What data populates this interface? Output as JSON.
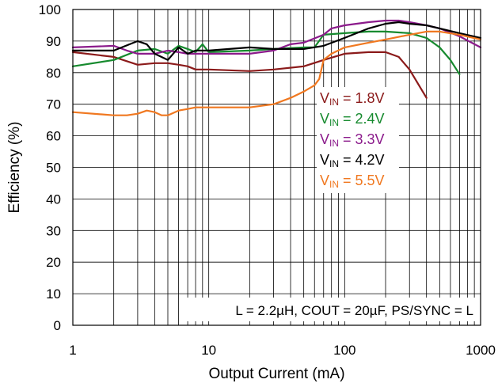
{
  "chart_data": {
    "type": "line",
    "xlabel": "Output Current (mA)",
    "ylabel": "Efficiency (%)",
    "xscale": "log",
    "xlim": [
      1,
      1000
    ],
    "ylim": [
      0,
      100
    ],
    "grid": true,
    "x_ticks": [
      {
        "value": 1,
        "label": "1"
      },
      {
        "value": 10,
        "label": "10"
      },
      {
        "value": 100,
        "label": "100"
      },
      {
        "value": 1000,
        "label": "1000"
      }
    ],
    "y_ticks": [
      {
        "value": 0,
        "label": "0"
      },
      {
        "value": 10,
        "label": "10"
      },
      {
        "value": 20,
        "label": "20"
      },
      {
        "value": 30,
        "label": "30"
      },
      {
        "value": 40,
        "label": "40"
      },
      {
        "value": 50,
        "label": "50"
      },
      {
        "value": 60,
        "label": "60"
      },
      {
        "value": 70,
        "label": "70"
      },
      {
        "value": 80,
        "label": "80"
      },
      {
        "value": 90,
        "label": "90"
      },
      {
        "value": 100,
        "label": "100"
      }
    ],
    "annotation": "L = 2.2µH, COUT = 20µF, PS/SYNC = L",
    "legend_position": "right",
    "series": [
      {
        "name": "VIN = 1.8V",
        "sub": "IN",
        "prefix": "V",
        "suffix": " = 1.8V",
        "color": "#8b1a1a",
        "points": [
          [
            1,
            86.5
          ],
          [
            2,
            85
          ],
          [
            3,
            82.5
          ],
          [
            4,
            83
          ],
          [
            5,
            83
          ],
          [
            6,
            82.5
          ],
          [
            7,
            82
          ],
          [
            8,
            81
          ],
          [
            10,
            81
          ],
          [
            20,
            80.5
          ],
          [
            30,
            81
          ],
          [
            50,
            82
          ],
          [
            70,
            84
          ],
          [
            100,
            86
          ],
          [
            150,
            86.5
          ],
          [
            200,
            86.5
          ],
          [
            250,
            85
          ],
          [
            300,
            81
          ],
          [
            400,
            72
          ]
        ]
      },
      {
        "name": "VIN = 2.4V",
        "sub": "IN",
        "prefix": "V",
        "suffix": " = 2.4V",
        "color": "#168a2e",
        "points": [
          [
            1,
            82
          ],
          [
            2,
            84
          ],
          [
            3,
            87
          ],
          [
            4,
            87.5
          ],
          [
            5,
            86
          ],
          [
            6,
            88.5
          ],
          [
            7,
            87.5
          ],
          [
            8,
            86.5
          ],
          [
            9,
            89
          ],
          [
            10,
            86.5
          ],
          [
            20,
            87
          ],
          [
            30,
            87.5
          ],
          [
            50,
            88
          ],
          [
            60,
            88
          ],
          [
            70,
            92
          ],
          [
            100,
            92.5
          ],
          [
            150,
            93
          ],
          [
            200,
            93
          ],
          [
            300,
            92.5
          ],
          [
            400,
            91
          ],
          [
            500,
            88
          ],
          [
            600,
            84
          ],
          [
            700,
            79.5
          ]
        ]
      },
      {
        "name": "VIN = 3.3V",
        "sub": "IN",
        "prefix": "V",
        "suffix": " = 3.3V",
        "color": "#8b1a8b",
        "points": [
          [
            1,
            88
          ],
          [
            2,
            88.5
          ],
          [
            2.5,
            87
          ],
          [
            3,
            86
          ],
          [
            4,
            86
          ],
          [
            5,
            87
          ],
          [
            6,
            86.5
          ],
          [
            7,
            86
          ],
          [
            8,
            86
          ],
          [
            10,
            86
          ],
          [
            20,
            86
          ],
          [
            30,
            87
          ],
          [
            40,
            89
          ],
          [
            50,
            89.5
          ],
          [
            70,
            92
          ],
          [
            80,
            94
          ],
          [
            100,
            95
          ],
          [
            150,
            96
          ],
          [
            200,
            96.5
          ],
          [
            250,
            96.5
          ],
          [
            300,
            96
          ],
          [
            400,
            95
          ],
          [
            500,
            94
          ],
          [
            700,
            91.5
          ],
          [
            1000,
            88
          ]
        ]
      },
      {
        "name": "VIN = 4.2V",
        "sub": "IN",
        "prefix": "V",
        "suffix": " = 4.2V",
        "color": "#000000",
        "points": [
          [
            1,
            87
          ],
          [
            2,
            87
          ],
          [
            3,
            90
          ],
          [
            3.5,
            89
          ],
          [
            4,
            86
          ],
          [
            5,
            84
          ],
          [
            6,
            88
          ],
          [
            7,
            86
          ],
          [
            8,
            87
          ],
          [
            10,
            87
          ],
          [
            20,
            88
          ],
          [
            30,
            87.5
          ],
          [
            40,
            87.5
          ],
          [
            50,
            87.5
          ],
          [
            70,
            88.5
          ],
          [
            100,
            91
          ],
          [
            150,
            94
          ],
          [
            200,
            95.5
          ],
          [
            250,
            96
          ],
          [
            300,
            95.5
          ],
          [
            400,
            95
          ],
          [
            500,
            94
          ],
          [
            700,
            92.5
          ],
          [
            1000,
            91
          ]
        ]
      },
      {
        "name": "VIN = 5.5V",
        "sub": "IN",
        "prefix": "V",
        "suffix": " = 5.5V",
        "color": "#f07820",
        "points": [
          [
            1,
            67.5
          ],
          [
            2,
            66.5
          ],
          [
            2.5,
            66.5
          ],
          [
            3,
            67
          ],
          [
            3.5,
            68
          ],
          [
            4,
            67.5
          ],
          [
            4.5,
            66.5
          ],
          [
            5,
            66.5
          ],
          [
            6,
            68
          ],
          [
            7,
            68.5
          ],
          [
            8,
            69
          ],
          [
            10,
            69
          ],
          [
            20,
            69
          ],
          [
            30,
            70
          ],
          [
            40,
            72
          ],
          [
            50,
            74
          ],
          [
            60,
            76
          ],
          [
            65,
            78
          ],
          [
            70,
            84
          ],
          [
            80,
            86
          ],
          [
            100,
            88
          ],
          [
            150,
            89.5
          ],
          [
            200,
            90.5
          ],
          [
            300,
            92
          ],
          [
            400,
            93
          ],
          [
            500,
            93
          ],
          [
            700,
            92
          ],
          [
            1000,
            90.5
          ]
        ]
      }
    ]
  }
}
